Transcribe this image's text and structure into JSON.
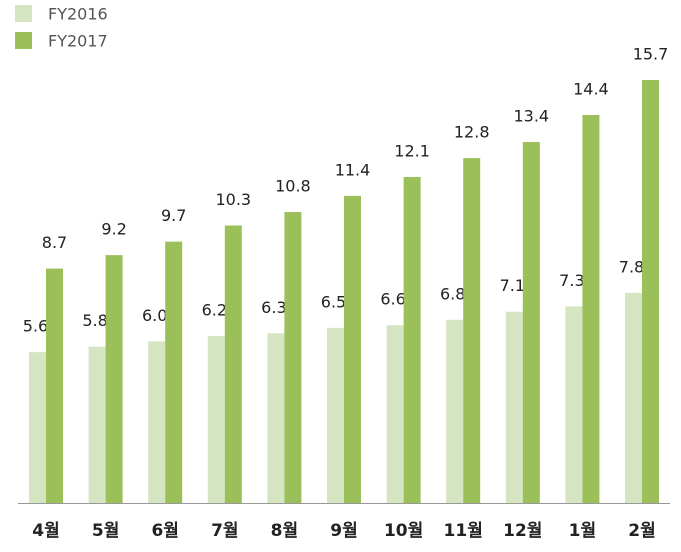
{
  "chart_data": {
    "type": "bar",
    "categories": [
      "4월",
      "5월",
      "6월",
      "7월",
      "8월",
      "9월",
      "10월",
      "11월",
      "12월",
      "1월",
      "2월"
    ],
    "series": [
      {
        "name": "FY2016",
        "color": "#d6e5c1",
        "values": [
          5.6,
          5.8,
          6.0,
          6.2,
          6.3,
          6.5,
          6.6,
          6.8,
          7.1,
          7.3,
          7.8
        ],
        "value_labels": [
          "5.6",
          "5.8",
          "6.0",
          "6.2",
          "6.3",
          "6.5",
          "6.6",
          "6.8",
          "7.1",
          "7.3",
          "7.8"
        ]
      },
      {
        "name": "FY2017",
        "color": "#9bbf59",
        "values": [
          8.7,
          9.2,
          9.7,
          10.3,
          10.8,
          11.4,
          12.1,
          12.8,
          13.4,
          14.4,
          15.7
        ],
        "value_labels": [
          "8.7",
          "9.2",
          "9.7",
          "10.3",
          "10.8",
          "11.4",
          "12.1",
          "12.8",
          "13.4",
          "14.4",
          "15.7"
        ]
      }
    ]
  }
}
